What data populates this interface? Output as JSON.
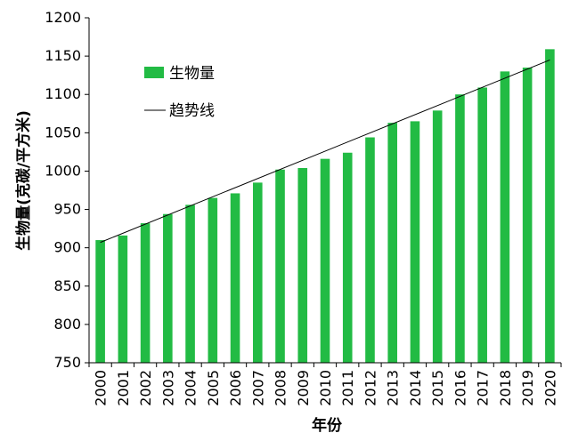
{
  "chart_data": {
    "type": "bar",
    "xlabel": "年份",
    "ylabel": "生物量(克碳/平方米)",
    "ylim": [
      750,
      1200
    ],
    "yticks": [
      750,
      800,
      850,
      900,
      950,
      1000,
      1050,
      1100,
      1150,
      1200
    ],
    "categories": [
      "2000",
      "2001",
      "2002",
      "2003",
      "2004",
      "2005",
      "2006",
      "2007",
      "2008",
      "2009",
      "2010",
      "2011",
      "2012",
      "2013",
      "2014",
      "2015",
      "2016",
      "2017",
      "2018",
      "2019",
      "2020"
    ],
    "series": [
      {
        "name": "生物量",
        "color": "#22bb44",
        "values": [
          910,
          916,
          932,
          944,
          956,
          965,
          971,
          985,
          1002,
          1004,
          1016,
          1024,
          1044,
          1063,
          1065,
          1079,
          1100,
          1109,
          1130,
          1135,
          1159
        ]
      }
    ],
    "trendline": {
      "name": "趋势线",
      "color": "#000000",
      "start": 907,
      "end": 1145
    },
    "legend_position": "top-left",
    "grid": false
  }
}
